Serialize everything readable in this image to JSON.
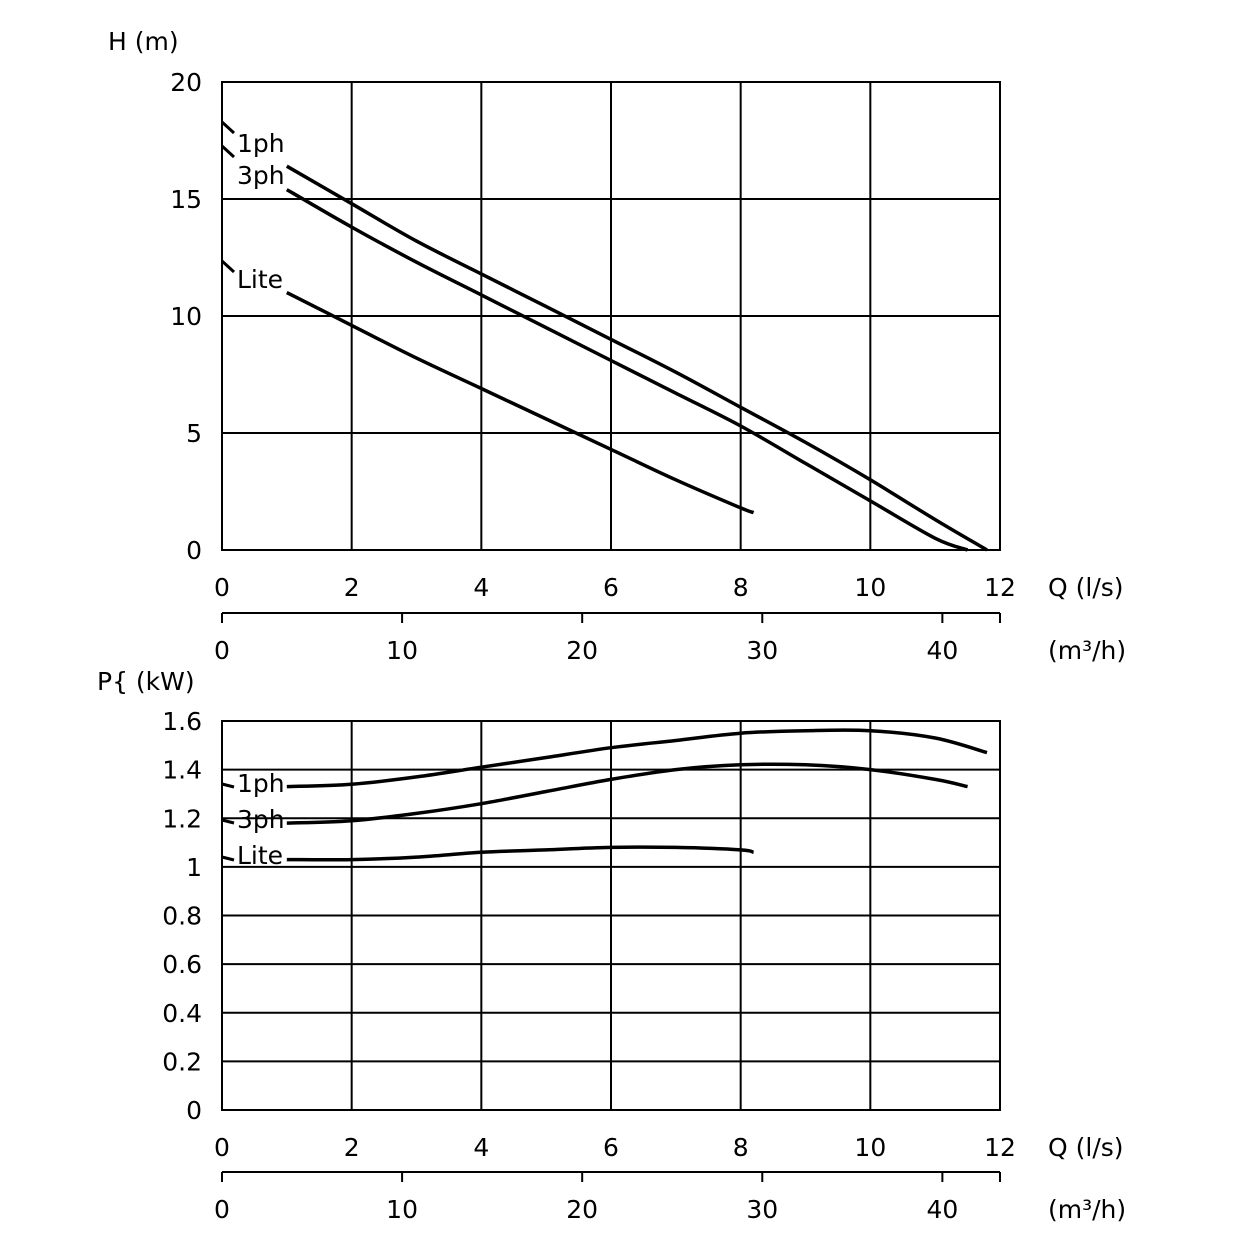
{
  "chart_data": [
    {
      "type": "line",
      "title": "",
      "ylabel": "H   (m)",
      "xlabel": "Q (l/s)",
      "xlabel_secondary": "(m³/h)",
      "xlim": [
        0,
        12
      ],
      "ylim": [
        0,
        20
      ],
      "x_ticks": [
        "0",
        "2",
        "4",
        "6",
        "8",
        "10",
        "12"
      ],
      "y_ticks": [
        "0",
        "5",
        "10",
        "15",
        "20"
      ],
      "x2_ticks": [
        "0",
        "10",
        "20",
        "30",
        "40"
      ],
      "grid": true,
      "series": [
        {
          "name": "1ph",
          "x": [
            1,
            2,
            3,
            4,
            5,
            6,
            7,
            8,
            9,
            10,
            11,
            11.8
          ],
          "y": [
            16.4,
            14.8,
            13.2,
            11.8,
            10.4,
            9.0,
            7.6,
            6.1,
            4.6,
            3.0,
            1.3,
            0.0
          ]
        },
        {
          "name": "3ph",
          "x": [
            1,
            2,
            3,
            4,
            5,
            6,
            7,
            8,
            9,
            10,
            11,
            11.5
          ],
          "y": [
            15.4,
            13.8,
            12.3,
            10.9,
            9.5,
            8.1,
            6.7,
            5.3,
            3.7,
            2.1,
            0.5,
            0.0
          ]
        },
        {
          "name": "Lite",
          "x": [
            1,
            2,
            3,
            4,
            5,
            6,
            7,
            8,
            8.2
          ],
          "y": [
            11.0,
            9.6,
            8.2,
            6.9,
            5.6,
            4.3,
            3.0,
            1.8,
            1.6
          ]
        }
      ]
    },
    {
      "type": "line",
      "title": "",
      "ylabel": "P{ (kW)",
      "xlabel": "Q (l/s)",
      "xlabel_secondary": "(m³/h)",
      "xlim": [
        0,
        12
      ],
      "ylim": [
        0,
        1.6
      ],
      "x_ticks": [
        "0",
        "2",
        "4",
        "6",
        "8",
        "10",
        "12"
      ],
      "y_ticks": [
        "0",
        "0.2",
        "0.4",
        "0.6",
        "0.8",
        "1",
        "1.2",
        "1.4",
        "1.6"
      ],
      "x2_ticks": [
        "0",
        "10",
        "20",
        "30",
        "40"
      ],
      "grid": true,
      "series": [
        {
          "name": "1ph",
          "x": [
            1,
            2,
            3,
            4,
            5,
            6,
            7,
            8,
            9,
            10,
            11,
            11.8
          ],
          "y": [
            1.33,
            1.34,
            1.37,
            1.41,
            1.45,
            1.49,
            1.52,
            1.55,
            1.56,
            1.56,
            1.53,
            1.47
          ]
        },
        {
          "name": "3ph",
          "x": [
            1,
            2,
            3,
            4,
            5,
            6,
            7,
            8,
            9,
            10,
            11,
            11.5
          ],
          "y": [
            1.18,
            1.19,
            1.22,
            1.26,
            1.31,
            1.36,
            1.4,
            1.42,
            1.42,
            1.4,
            1.36,
            1.33
          ]
        },
        {
          "name": "Lite",
          "x": [
            1,
            2,
            3,
            4,
            5,
            6,
            7,
            8,
            8.2
          ],
          "y": [
            1.03,
            1.03,
            1.04,
            1.06,
            1.07,
            1.08,
            1.08,
            1.07,
            1.06
          ]
        }
      ]
    }
  ]
}
